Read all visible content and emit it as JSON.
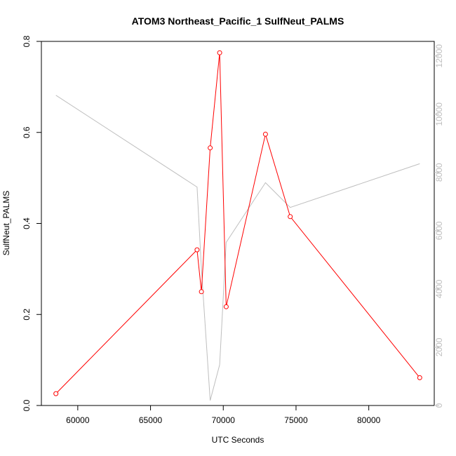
{
  "chart_data": {
    "type": "line",
    "title": "ATOM3 Northeast_Pacific_1 SulfNeut_PALMS",
    "xlabel": "UTC Seconds",
    "ylabel": "SulfNeut_PALMS",
    "xlim": [
      57500,
      84500
    ],
    "ylim": [
      0,
      0.8
    ],
    "y2lim": [
      0,
      12500
    ],
    "x_ticks": [
      60000,
      65000,
      70000,
      75000,
      80000
    ],
    "y_ticks": [
      0.0,
      0.2,
      0.4,
      0.6,
      0.8
    ],
    "y2_ticks": [
      0,
      2000,
      4000,
      6000,
      8000,
      10000,
      12000
    ],
    "x_tick_labels": [
      "60000",
      "65000",
      "70000",
      "75000",
      "80000"
    ],
    "y_tick_labels": [
      "0.0",
      "0.2",
      "0.4",
      "0.6",
      "0.8"
    ],
    "y2_tick_labels": [
      "0",
      "2000",
      "4000",
      "6000",
      "8000",
      "10000",
      "12000"
    ],
    "grid": false,
    "series": [
      {
        "axis": "left",
        "color": "#ff0000",
        "style": "line-with-open-circles",
        "x": [
          58500,
          68200,
          68500,
          69100,
          69750,
          70200,
          72900,
          74600,
          83500
        ],
        "y": [
          0.026,
          0.342,
          0.25,
          0.566,
          0.775,
          0.217,
          0.596,
          0.415,
          0.061
        ]
      },
      {
        "axis": "right",
        "color": "#bebebe",
        "style": "line",
        "x": [
          58500,
          68200,
          68500,
          69100,
          69750,
          70200,
          72900,
          74600,
          83500
        ],
        "y": [
          10650,
          7500,
          4700,
          170,
          1400,
          5600,
          7650,
          6800,
          8300
        ]
      }
    ]
  }
}
